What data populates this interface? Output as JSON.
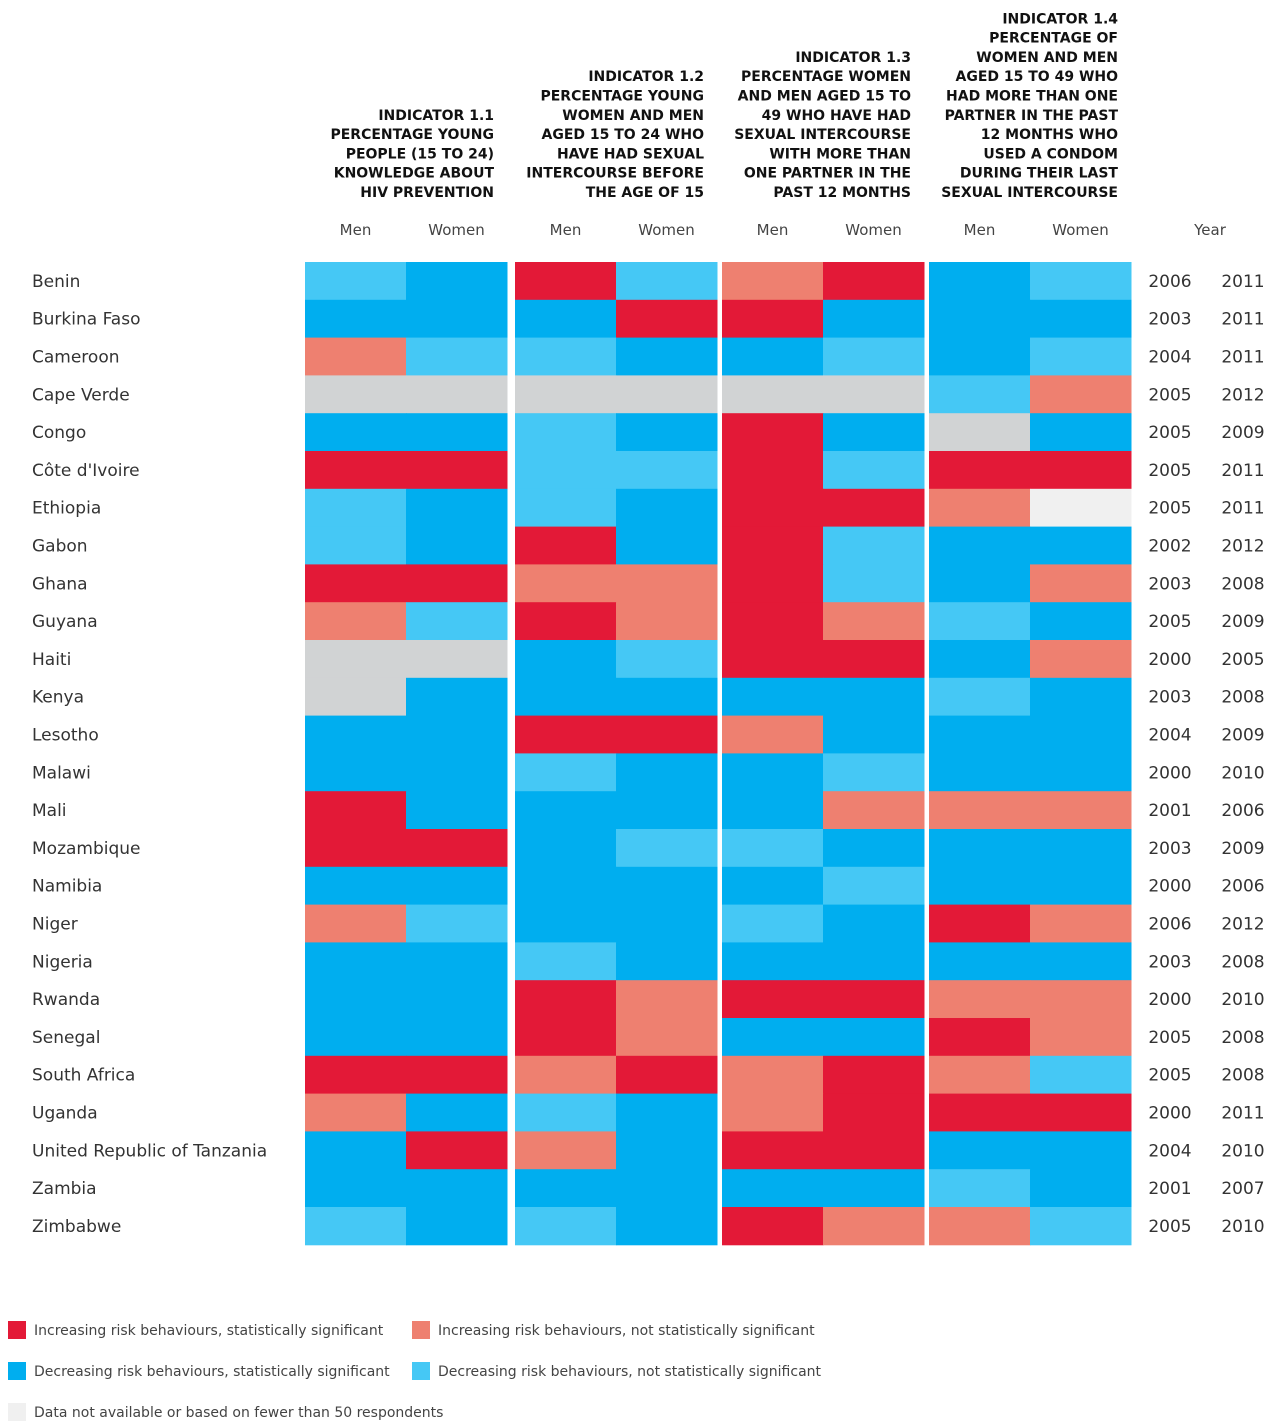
{
  "chart_data": {
    "type": "heatmap",
    "headers": [
      [
        "INDICATOR 1.1",
        "PERCENTAGE YOUNG",
        "PEOPLE (15 TO 24)",
        "KNOWLEDGE ABOUT",
        "HIV PREVENTION"
      ],
      [
        "INDICATOR 1.2",
        "PERCENTAGE YOUNG",
        "WOMEN AND MEN",
        "AGED 15 TO 24 WHO",
        "HAVE HAD SEXUAL",
        "INTERCOURSE BEFORE",
        "THE AGE OF 15"
      ],
      [
        "INDICATOR 1.3",
        "PERCENTAGE WOMEN",
        "AND MEN AGED 15 TO",
        "49 WHO HAVE HAD",
        "SEXUAL INTERCOURSE",
        "WITH MORE THAN",
        "ONE PARTNER IN THE",
        "PAST 12 MONTHS"
      ],
      [
        "INDICATOR 1.4",
        "PERCENTAGE OF",
        "WOMEN AND MEN",
        "AGED 15 TO 49 WHO",
        "HAD MORE THAN ONE",
        "PARTNER IN THE PAST",
        "12 MONTHS WHO",
        "USED A CONDOM",
        "DURING THEIR LAST",
        "SEXUAL INTERCOURSE"
      ]
    ],
    "subheaders": [
      "Men",
      "Women",
      "Men",
      "Women",
      "Men",
      "Women",
      "Men",
      "Women"
    ],
    "year_header": "Year",
    "rows": [
      {
        "country": "Benin",
        "cells": [
          "#45c8f5",
          "#00aeef",
          "#e31937",
          "#45c8f5",
          "#ee8070",
          "#e31937",
          "#00aeef",
          "#45c8f5"
        ],
        "years": [
          "2006",
          "2011"
        ]
      },
      {
        "country": "Burkina Faso",
        "cells": [
          "#00aeef",
          "#00aeef",
          "#00aeef",
          "#e31937",
          "#e31937",
          "#00aeef",
          "#00aeef",
          "#00aeef"
        ],
        "years": [
          "2003",
          "2011"
        ]
      },
      {
        "country": "Cameroon",
        "cells": [
          "#ee8070",
          "#45c8f5",
          "#45c8f5",
          "#00aeef",
          "#00aeef",
          "#45c8f5",
          "#00aeef",
          "#45c8f5"
        ],
        "years": [
          "2004",
          "2011"
        ]
      },
      {
        "country": "Cape Verde",
        "cells": [
          "#d1d3d4",
          "#d1d3d4",
          "#d1d3d4",
          "#d1d3d4",
          "#d1d3d4",
          "#d1d3d4",
          "#45c8f5",
          "#ee8070"
        ],
        "years": [
          "2005",
          "2012"
        ]
      },
      {
        "country": "Congo",
        "cells": [
          "#00aeef",
          "#00aeef",
          "#45c8f5",
          "#00aeef",
          "#e31937",
          "#00aeef",
          "#d1d3d4",
          "#00aeef"
        ],
        "years": [
          "2005",
          "2009"
        ]
      },
      {
        "country": "Côte d'Ivoire",
        "cells": [
          "#e31937",
          "#e31937",
          "#45c8f5",
          "#45c8f5",
          "#e31937",
          "#45c8f5",
          "#e31937",
          "#e31937"
        ],
        "years": [
          "2005",
          "2011"
        ]
      },
      {
        "country": "Ethiopia",
        "cells": [
          "#45c8f5",
          "#00aeef",
          "#45c8f5",
          "#00aeef",
          "#e31937",
          "#e31937",
          "#ee8070",
          "#f0f0f0"
        ],
        "years": [
          "2005",
          "2011"
        ]
      },
      {
        "country": "Gabon",
        "cells": [
          "#45c8f5",
          "#00aeef",
          "#e31937",
          "#00aeef",
          "#e31937",
          "#45c8f5",
          "#00aeef",
          "#00aeef"
        ],
        "years": [
          "2002",
          "2012"
        ]
      },
      {
        "country": "Ghana",
        "cells": [
          "#e31937",
          "#e31937",
          "#ee8070",
          "#ee8070",
          "#e31937",
          "#45c8f5",
          "#00aeef",
          "#ee8070"
        ],
        "years": [
          "2003",
          "2008"
        ]
      },
      {
        "country": "Guyana",
        "cells": [
          "#ee8070",
          "#45c8f5",
          "#e31937",
          "#ee8070",
          "#e31937",
          "#ee8070",
          "#45c8f5",
          "#00aeef"
        ],
        "years": [
          "2005",
          "2009"
        ]
      },
      {
        "country": "Haiti",
        "cells": [
          "#d1d3d4",
          "#d1d3d4",
          "#00aeef",
          "#45c8f5",
          "#e31937",
          "#e31937",
          "#00aeef",
          "#ee8070"
        ],
        "years": [
          "2000",
          "2005"
        ]
      },
      {
        "country": "Kenya",
        "cells": [
          "#d1d3d4",
          "#00aeef",
          "#00aeef",
          "#00aeef",
          "#00aeef",
          "#00aeef",
          "#45c8f5",
          "#00aeef"
        ],
        "years": [
          "2003",
          "2008"
        ]
      },
      {
        "country": "Lesotho",
        "cells": [
          "#00aeef",
          "#00aeef",
          "#e31937",
          "#e31937",
          "#ee8070",
          "#00aeef",
          "#00aeef",
          "#00aeef"
        ],
        "years": [
          "2004",
          "2009"
        ]
      },
      {
        "country": "Malawi",
        "cells": [
          "#00aeef",
          "#00aeef",
          "#45c8f5",
          "#00aeef",
          "#00aeef",
          "#45c8f5",
          "#00aeef",
          "#00aeef"
        ],
        "years": [
          "2000",
          "2010"
        ]
      },
      {
        "country": "Mali",
        "cells": [
          "#e31937",
          "#00aeef",
          "#00aeef",
          "#00aeef",
          "#00aeef",
          "#ee8070",
          "#ee8070",
          "#ee8070"
        ],
        "years": [
          "2001",
          "2006"
        ]
      },
      {
        "country": "Mozambique",
        "cells": [
          "#e31937",
          "#e31937",
          "#00aeef",
          "#45c8f5",
          "#45c8f5",
          "#00aeef",
          "#00aeef",
          "#00aeef"
        ],
        "years": [
          "2003",
          "2009"
        ]
      },
      {
        "country": "Namibia",
        "cells": [
          "#00aeef",
          "#00aeef",
          "#00aeef",
          "#00aeef",
          "#00aeef",
          "#45c8f5",
          "#00aeef",
          "#00aeef"
        ],
        "years": [
          "2000",
          "2006"
        ]
      },
      {
        "country": "Niger",
        "cells": [
          "#ee8070",
          "#45c8f5",
          "#00aeef",
          "#00aeef",
          "#45c8f5",
          "#00aeef",
          "#e31937",
          "#ee8070"
        ],
        "years": [
          "2006",
          "2012"
        ]
      },
      {
        "country": "Nigeria",
        "cells": [
          "#00aeef",
          "#00aeef",
          "#45c8f5",
          "#00aeef",
          "#00aeef",
          "#00aeef",
          "#00aeef",
          "#00aeef"
        ],
        "years": [
          "2003",
          "2008"
        ]
      },
      {
        "country": "Rwanda",
        "cells": [
          "#00aeef",
          "#00aeef",
          "#e31937",
          "#ee8070",
          "#e31937",
          "#e31937",
          "#ee8070",
          "#ee8070"
        ],
        "years": [
          "2000",
          "2010"
        ]
      },
      {
        "country": "Senegal",
        "cells": [
          "#00aeef",
          "#00aeef",
          "#e31937",
          "#ee8070",
          "#00aeef",
          "#00aeef",
          "#e31937",
          "#ee8070"
        ],
        "years": [
          "2005",
          "2008"
        ]
      },
      {
        "country": "South Africa",
        "cells": [
          "#e31937",
          "#e31937",
          "#ee8070",
          "#e31937",
          "#ee8070",
          "#e31937",
          "#ee8070",
          "#45c8f5"
        ],
        "years": [
          "2005",
          "2008"
        ]
      },
      {
        "country": "Uganda",
        "cells": [
          "#ee8070",
          "#00aeef",
          "#45c8f5",
          "#00aeef",
          "#ee8070",
          "#e31937",
          "#e31937",
          "#e31937"
        ],
        "years": [
          "2000",
          "2011"
        ]
      },
      {
        "country": "United Republic of Tanzania",
        "cells": [
          "#00aeef",
          "#e31937",
          "#ee8070",
          "#00aeef",
          "#e31937",
          "#e31937",
          "#00aeef",
          "#00aeef"
        ],
        "years": [
          "2004",
          "2010"
        ]
      },
      {
        "country": "Zambia",
        "cells": [
          "#00aeef",
          "#00aeef",
          "#00aeef",
          "#00aeef",
          "#00aeef",
          "#00aeef",
          "#45c8f5",
          "#00aeef"
        ],
        "years": [
          "2001",
          "2007"
        ]
      },
      {
        "country": "Zimbabwe",
        "cells": [
          "#45c8f5",
          "#00aeef",
          "#45c8f5",
          "#00aeef",
          "#e31937",
          "#ee8070",
          "#ee8070",
          "#45c8f5"
        ],
        "years": [
          "2005",
          "2010"
        ]
      }
    ],
    "legend": [
      {
        "label": "Increasing risk behaviours, statistically significant",
        "color": "#e31937"
      },
      {
        "label": "Increasing risk behaviours, not statistically significant",
        "color": "#ee8070"
      },
      {
        "label": "Decreasing risk behaviours, statistically significant",
        "color": "#00aeef"
      },
      {
        "label": "Decreasing risk behaviours, not statistically significant",
        "color": "#45c8f5"
      },
      {
        "label": "Data not available or based on fewer than 50 respondents",
        "color": "#f0f0f0"
      }
    ]
  }
}
